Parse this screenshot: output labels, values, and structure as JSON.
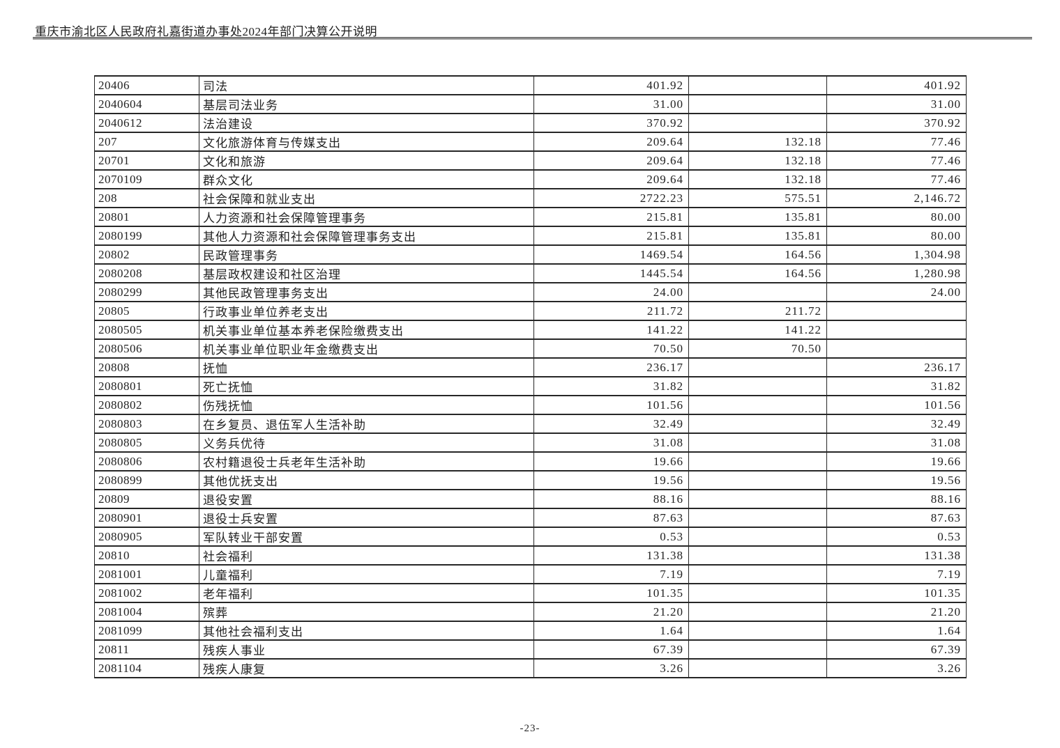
{
  "header": {
    "title": "重庆市渝北区人民政府礼嘉街道办事处2024年部门决算公开说明"
  },
  "footer": {
    "page_number": "-23-"
  },
  "colors": {
    "text": "#1a1a1a",
    "table_border": "#262626",
    "header_rule": "#8a8a8a"
  },
  "table": {
    "rows": [
      {
        "code": "20406",
        "name": "司法",
        "values": [
          "401.92",
          "",
          "401.92"
        ]
      },
      {
        "code": "2040604",
        "name": "基层司法业务",
        "values": [
          "31.00",
          "",
          "31.00"
        ]
      },
      {
        "code": "2040612",
        "name": "法治建设",
        "values": [
          "370.92",
          "",
          "370.92"
        ]
      },
      {
        "code": "207",
        "name": "文化旅游体育与传媒支出",
        "values": [
          "209.64",
          "132.18",
          "77.46"
        ]
      },
      {
        "code": "20701",
        "name": "文化和旅游",
        "values": [
          "209.64",
          "132.18",
          "77.46"
        ]
      },
      {
        "code": "2070109",
        "name": "群众文化",
        "values": [
          "209.64",
          "132.18",
          "77.46"
        ]
      },
      {
        "code": "208",
        "name": "社会保障和就业支出",
        "values": [
          "2722.23",
          "575.51",
          "2,146.72"
        ]
      },
      {
        "code": "20801",
        "name": "人力资源和社会保障管理事务",
        "values": [
          "215.81",
          "135.81",
          "80.00"
        ]
      },
      {
        "code": "2080199",
        "name": "其他人力资源和社会保障管理事务支出",
        "values": [
          "215.81",
          "135.81",
          "80.00"
        ]
      },
      {
        "code": "20802",
        "name": "民政管理事务",
        "values": [
          "1469.54",
          "164.56",
          "1,304.98"
        ]
      },
      {
        "code": "2080208",
        "name": "基层政权建设和社区治理",
        "values": [
          "1445.54",
          "164.56",
          "1,280.98"
        ]
      },
      {
        "code": "2080299",
        "name": "其他民政管理事务支出",
        "values": [
          "24.00",
          "",
          "24.00"
        ]
      },
      {
        "code": "20805",
        "name": "行政事业单位养老支出",
        "values": [
          "211.72",
          "211.72",
          ""
        ]
      },
      {
        "code": "2080505",
        "name": "机关事业单位基本养老保险缴费支出",
        "values": [
          "141.22",
          "141.22",
          ""
        ]
      },
      {
        "code": "2080506",
        "name": "机关事业单位职业年金缴费支出",
        "values": [
          "70.50",
          "70.50",
          ""
        ]
      },
      {
        "code": "20808",
        "name": "抚恤",
        "values": [
          "236.17",
          "",
          "236.17"
        ]
      },
      {
        "code": "2080801",
        "name": "死亡抚恤",
        "values": [
          "31.82",
          "",
          "31.82"
        ]
      },
      {
        "code": "2080802",
        "name": "伤残抚恤",
        "values": [
          "101.56",
          "",
          "101.56"
        ]
      },
      {
        "code": "2080803",
        "name": "在乡复员、退伍军人生活补助",
        "values": [
          "32.49",
          "",
          "32.49"
        ]
      },
      {
        "code": "2080805",
        "name": "义务兵优待",
        "values": [
          "31.08",
          "",
          "31.08"
        ]
      },
      {
        "code": "2080806",
        "name": "农村籍退役士兵老年生活补助",
        "values": [
          "19.66",
          "",
          "19.66"
        ]
      },
      {
        "code": "2080899",
        "name": "其他优抚支出",
        "values": [
          "19.56",
          "",
          "19.56"
        ]
      },
      {
        "code": "20809",
        "name": "退役安置",
        "values": [
          "88.16",
          "",
          "88.16"
        ]
      },
      {
        "code": "2080901",
        "name": "退役士兵安置",
        "values": [
          "87.63",
          "",
          "87.63"
        ]
      },
      {
        "code": "2080905",
        "name": "军队转业干部安置",
        "values": [
          "0.53",
          "",
          "0.53"
        ]
      },
      {
        "code": "20810",
        "name": "社会福利",
        "values": [
          "131.38",
          "",
          "131.38"
        ]
      },
      {
        "code": "2081001",
        "name": "儿童福利",
        "values": [
          "7.19",
          "",
          "7.19"
        ]
      },
      {
        "code": "2081002",
        "name": "老年福利",
        "values": [
          "101.35",
          "",
          "101.35"
        ]
      },
      {
        "code": "2081004",
        "name": "殡葬",
        "values": [
          "21.20",
          "",
          "21.20"
        ]
      },
      {
        "code": "2081099",
        "name": "其他社会福利支出",
        "values": [
          "1.64",
          "",
          "1.64"
        ]
      },
      {
        "code": "20811",
        "name": "残疾人事业",
        "values": [
          "67.39",
          "",
          "67.39"
        ]
      },
      {
        "code": "2081104",
        "name": "残疾人康复",
        "values": [
          "3.26",
          "",
          "3.26"
        ]
      }
    ]
  }
}
